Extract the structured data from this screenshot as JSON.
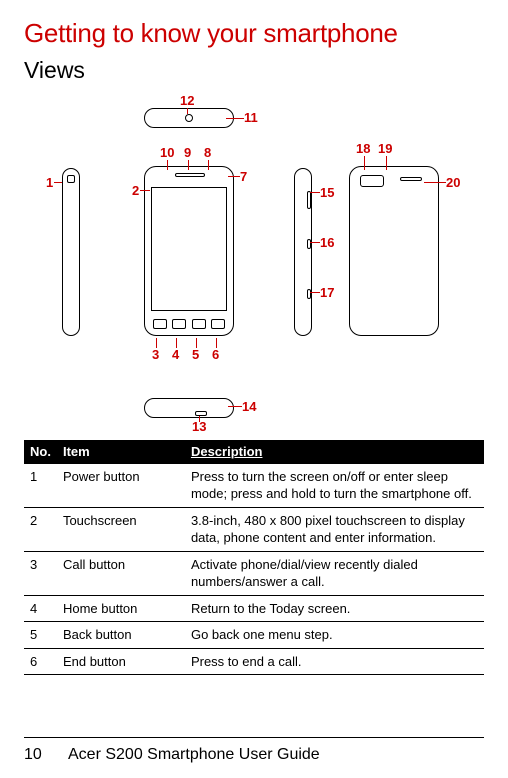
{
  "title": "Getting to know your smartphone",
  "section": "Views",
  "colors": {
    "accent": "#cc0000",
    "header_bg": "#000000",
    "header_fg": "#ffffff",
    "border": "#000000",
    "page_bg": "#ffffff"
  },
  "callouts": {
    "n1": "1",
    "n2": "2",
    "n3": "3",
    "n4": "4",
    "n5": "5",
    "n6": "6",
    "n7": "7",
    "n8": "8",
    "n9": "9",
    "n10": "10",
    "n11": "11",
    "n12": "12",
    "n13": "13",
    "n14": "14",
    "n15": "15",
    "n16": "16",
    "n17": "17",
    "n18": "18",
    "n19": "19",
    "n20": "20"
  },
  "table": {
    "headers": {
      "no": "No.",
      "item": "Item",
      "desc": "Description"
    },
    "rows": [
      {
        "no": "1",
        "item": "Power button",
        "desc": "Press to turn the screen on/off or enter sleep mode; press and hold to turn the smartphone off."
      },
      {
        "no": "2",
        "item": "Touchscreen",
        "desc": "3.8-inch, 480 x 800 pixel touchscreen to display data, phone content and enter information."
      },
      {
        "no": "3",
        "item": "Call button",
        "desc": "Activate phone/dial/view recently dialed numbers/answer a call."
      },
      {
        "no": "4",
        "item": "Home button",
        "desc": "Return to the Today screen."
      },
      {
        "no": "5",
        "item": "Back button",
        "desc": "Go back one menu step."
      },
      {
        "no": "6",
        "item": "End button",
        "desc": "Press to end a call."
      }
    ]
  },
  "footer": {
    "page": "10",
    "text": "Acer S200 Smartphone User Guide"
  }
}
